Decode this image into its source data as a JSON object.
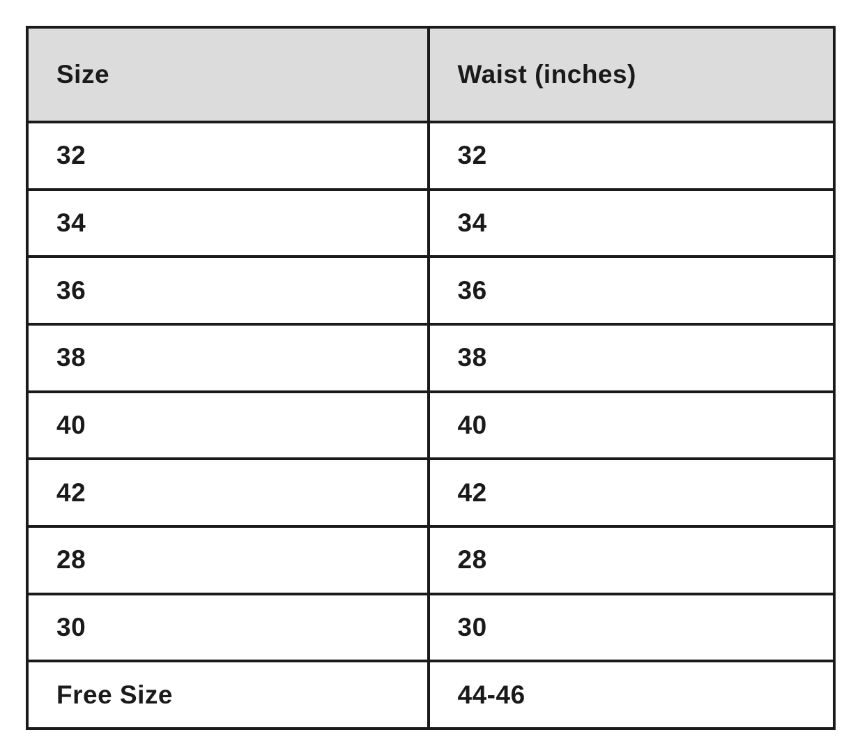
{
  "page": {
    "background": "#ffffff"
  },
  "table": {
    "columns": [
      "Size",
      "Waist (inches)"
    ],
    "rows": [
      [
        "32",
        "32"
      ],
      [
        "34",
        "34"
      ],
      [
        "36",
        "36"
      ],
      [
        "38",
        "38"
      ],
      [
        "40",
        "40"
      ],
      [
        "42",
        "42"
      ],
      [
        "28",
        "28"
      ],
      [
        "30",
        "30"
      ],
      [
        "Free Size",
        "44-46"
      ]
    ],
    "header_bg": "#dcdcdc",
    "border_color": "#1a1a1a",
    "text_color": "#1a1a1a"
  },
  "chart_data": {
    "type": "table",
    "columns": [
      "Size",
      "Waist (inches)"
    ],
    "rows": [
      {
        "size": "32",
        "waist_inches": "32"
      },
      {
        "size": "34",
        "waist_inches": "34"
      },
      {
        "size": "36",
        "waist_inches": "36"
      },
      {
        "size": "38",
        "waist_inches": "38"
      },
      {
        "size": "40",
        "waist_inches": "40"
      },
      {
        "size": "42",
        "waist_inches": "42"
      },
      {
        "size": "28",
        "waist_inches": "28"
      },
      {
        "size": "30",
        "waist_inches": "30"
      },
      {
        "size": "Free Size",
        "waist_inches": "44-46"
      }
    ],
    "layout": {
      "header_background": "#dcdcdc",
      "grid": true,
      "border_style": "double heavy black"
    }
  }
}
